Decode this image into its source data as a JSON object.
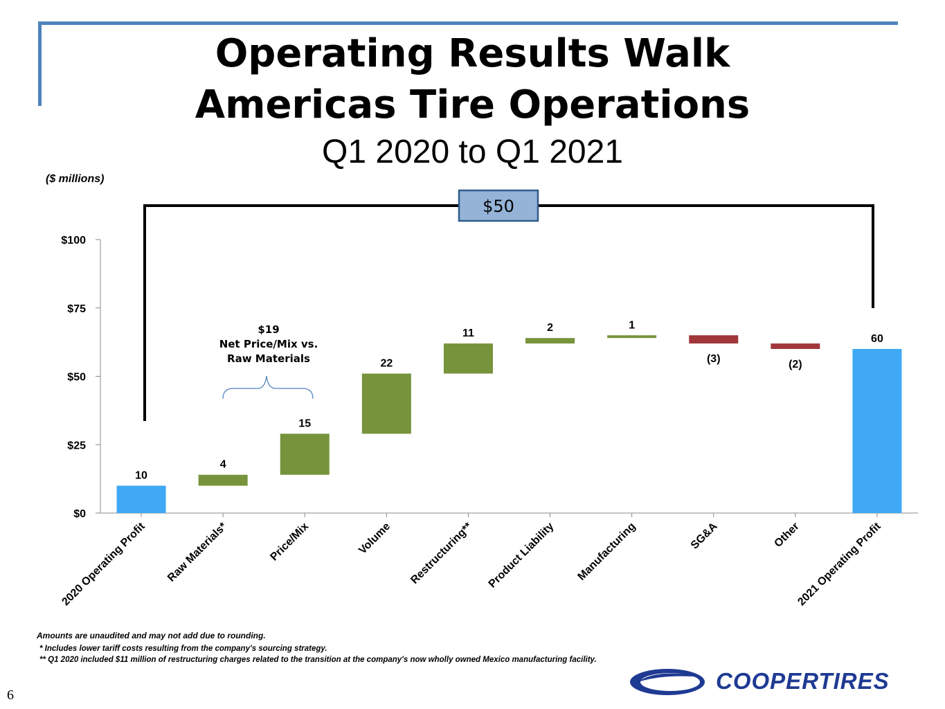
{
  "header": {
    "title_line1": "Operating Results Walk",
    "title_line2": "Americas Tire Operations",
    "subtitle": "Q1 2020 to Q1 2021",
    "units_label": "($ millions)"
  },
  "colors": {
    "accent_rule": "#4f81bd",
    "total_bar": "#3fa9f5",
    "positive_bar": "#77933c",
    "negative_bar": "#a0373b",
    "callout_fill": "#95b3d7",
    "callout_border": "#2f5b8a",
    "logo_blue": "#1f3a93"
  },
  "chart_data": {
    "type": "waterfall",
    "title": "Operating Results Walk - Americas Tire Operations, Q1 2020 to Q1 2021",
    "ylabel": "$ millions",
    "ylim": [
      0,
      100
    ],
    "yticks": [
      0,
      25,
      50,
      75,
      100
    ],
    "ytick_labels": [
      "$0",
      "$25",
      "$50",
      "$75",
      "$100"
    ],
    "categories": [
      "2020 Operating Profit",
      "Raw Materials*",
      "Price/Mix",
      "Volume",
      "Restructuring**",
      "Product Liability",
      "Manufacturing",
      "SG&A",
      "Other",
      "2021 Operating Profit"
    ],
    "values": [
      10,
      4,
      15,
      22,
      11,
      2,
      1,
      -3,
      -2,
      60
    ],
    "kinds": [
      "total",
      "delta",
      "delta",
      "delta",
      "delta",
      "delta",
      "delta",
      "delta",
      "delta",
      "total"
    ],
    "value_labels": [
      "10",
      "4",
      "15",
      "22",
      "11",
      "2",
      "1",
      "(3)",
      "(2)",
      "60"
    ],
    "bridge_label": "$50",
    "bracket_annotation": [
      "$19",
      "Net Price/Mix vs.",
      "Raw Materials"
    ]
  },
  "footnotes": [
    "Amounts are unaudited and may not add due to rounding.",
    "*   Includes lower tariff costs resulting from the company's sourcing strategy.",
    "** Q1 2020 included $11 million of restructuring charges related to the transition at the company's now wholly owned Mexico manufacturing facility."
  ],
  "page_number": "6",
  "logo": {
    "text": "COOPERTIRES",
    "icon": "cooper-swoosh-icon"
  }
}
